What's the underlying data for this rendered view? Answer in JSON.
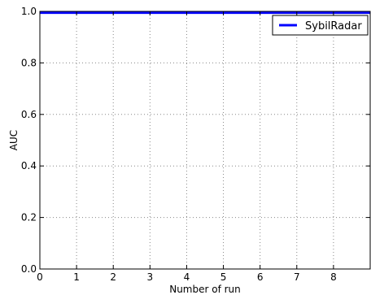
{
  "chart_data": {
    "type": "line",
    "title": "",
    "xlabel": "Number of run",
    "ylabel": "AUC",
    "xlim": [
      0,
      9
    ],
    "ylim": [
      0.0,
      1.0
    ],
    "x_ticks": [
      0,
      1,
      2,
      3,
      4,
      5,
      6,
      7,
      8
    ],
    "x_tick_labels": [
      "0",
      "1",
      "2",
      "3",
      "4",
      "5",
      "6",
      "7",
      "8"
    ],
    "y_ticks": [
      0.0,
      0.2,
      0.4,
      0.6,
      0.8,
      1.0
    ],
    "y_tick_labels": [
      "0.0",
      "0.2",
      "0.4",
      "0.6",
      "0.8",
      "1.0"
    ],
    "grid": true,
    "legend_position": "top-right",
    "series": [
      {
        "name": "SybilRadar",
        "color": "#0000ff",
        "x": [
          0,
          1,
          2,
          3,
          4,
          5,
          6,
          7,
          8,
          9
        ],
        "y": [
          0.995,
          0.995,
          0.995,
          0.995,
          0.995,
          0.995,
          0.995,
          0.995,
          0.995,
          0.995
        ]
      }
    ]
  }
}
